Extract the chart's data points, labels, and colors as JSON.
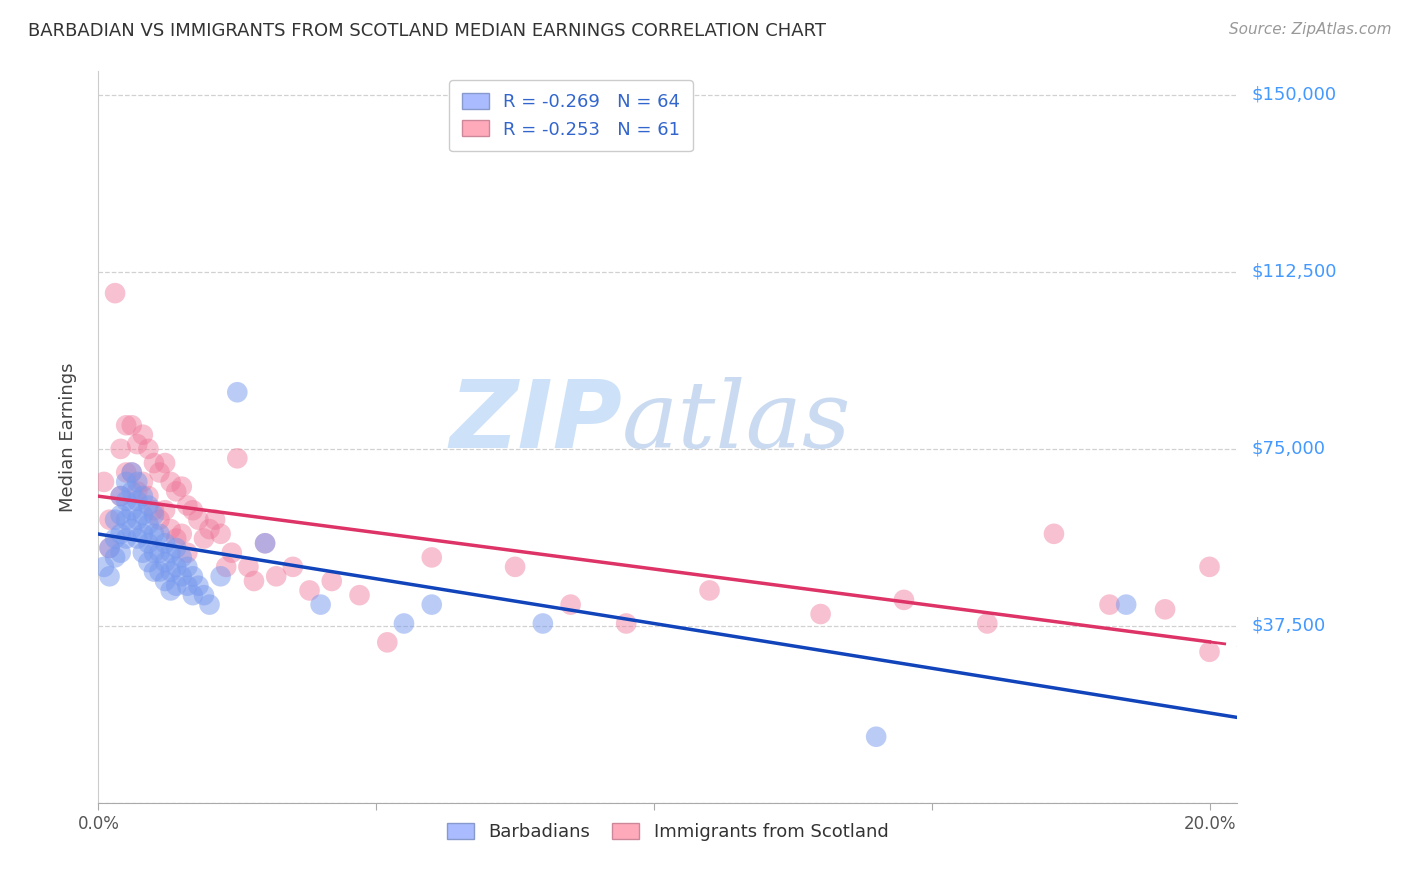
{
  "title": "BARBADIAN VS IMMIGRANTS FROM SCOTLAND MEDIAN EARNINGS CORRELATION CHART",
  "source": "Source: ZipAtlas.com",
  "ylabel": "Median Earnings",
  "legend_blue_r": "-0.269",
  "legend_blue_n": "64",
  "legend_pink_r": "-0.253",
  "legend_pink_n": "61",
  "xlim": [
    0.0,
    0.205
  ],
  "ylim": [
    0,
    155000
  ],
  "yticks": [
    0,
    37500,
    75000,
    112500,
    150000
  ],
  "ytick_labels_right": [
    "",
    "$37,500",
    "$75,000",
    "$112,500",
    "$150,000"
  ],
  "blue_scatter_color": "#7799ee",
  "blue_line_color": "#1144bb",
  "pink_scatter_color": "#ee7799",
  "pink_line_color": "#dd3366",
  "background_color": "#ffffff",
  "grid_color": "#cccccc",
  "blue_scatter_x": [
    0.001,
    0.002,
    0.002,
    0.003,
    0.003,
    0.003,
    0.004,
    0.004,
    0.004,
    0.004,
    0.005,
    0.005,
    0.005,
    0.005,
    0.006,
    0.006,
    0.006,
    0.006,
    0.007,
    0.007,
    0.007,
    0.007,
    0.008,
    0.008,
    0.008,
    0.008,
    0.009,
    0.009,
    0.009,
    0.009,
    0.01,
    0.01,
    0.01,
    0.01,
    0.011,
    0.011,
    0.011,
    0.012,
    0.012,
    0.012,
    0.013,
    0.013,
    0.013,
    0.014,
    0.014,
    0.014,
    0.015,
    0.015,
    0.016,
    0.016,
    0.017,
    0.017,
    0.018,
    0.019,
    0.02,
    0.022,
    0.025,
    0.03,
    0.04,
    0.055,
    0.06,
    0.08,
    0.14,
    0.185
  ],
  "blue_scatter_y": [
    50000,
    54000,
    48000,
    60000,
    56000,
    52000,
    65000,
    61000,
    57000,
    53000,
    68000,
    64000,
    60000,
    56000,
    70000,
    66000,
    62000,
    58000,
    68000,
    64000,
    60000,
    56000,
    65000,
    61000,
    57000,
    53000,
    63000,
    59000,
    55000,
    51000,
    61000,
    57000,
    53000,
    49000,
    57000,
    53000,
    49000,
    55000,
    51000,
    47000,
    53000,
    49000,
    45000,
    54000,
    50000,
    46000,
    52000,
    48000,
    50000,
    46000,
    48000,
    44000,
    46000,
    44000,
    42000,
    48000,
    87000,
    55000,
    42000,
    38000,
    42000,
    38000,
    14000,
    42000
  ],
  "pink_scatter_x": [
    0.001,
    0.002,
    0.002,
    0.003,
    0.004,
    0.004,
    0.005,
    0.005,
    0.006,
    0.006,
    0.007,
    0.007,
    0.008,
    0.008,
    0.009,
    0.009,
    0.01,
    0.01,
    0.011,
    0.011,
    0.012,
    0.012,
    0.013,
    0.013,
    0.014,
    0.014,
    0.015,
    0.015,
    0.016,
    0.016,
    0.017,
    0.018,
    0.019,
    0.02,
    0.021,
    0.022,
    0.023,
    0.024,
    0.025,
    0.027,
    0.028,
    0.03,
    0.032,
    0.035,
    0.038,
    0.042,
    0.047,
    0.052,
    0.06,
    0.075,
    0.085,
    0.095,
    0.11,
    0.13,
    0.145,
    0.16,
    0.172,
    0.182,
    0.192,
    0.2,
    0.2
  ],
  "pink_scatter_y": [
    68000,
    60000,
    54000,
    108000,
    75000,
    65000,
    80000,
    70000,
    80000,
    70000,
    76000,
    66000,
    78000,
    68000,
    75000,
    65000,
    72000,
    62000,
    70000,
    60000,
    72000,
    62000,
    68000,
    58000,
    66000,
    56000,
    67000,
    57000,
    63000,
    53000,
    62000,
    60000,
    56000,
    58000,
    60000,
    57000,
    50000,
    53000,
    73000,
    50000,
    47000,
    55000,
    48000,
    50000,
    45000,
    47000,
    44000,
    34000,
    52000,
    50000,
    42000,
    38000,
    45000,
    40000,
    43000,
    38000,
    57000,
    42000,
    41000,
    50000,
    32000
  ]
}
